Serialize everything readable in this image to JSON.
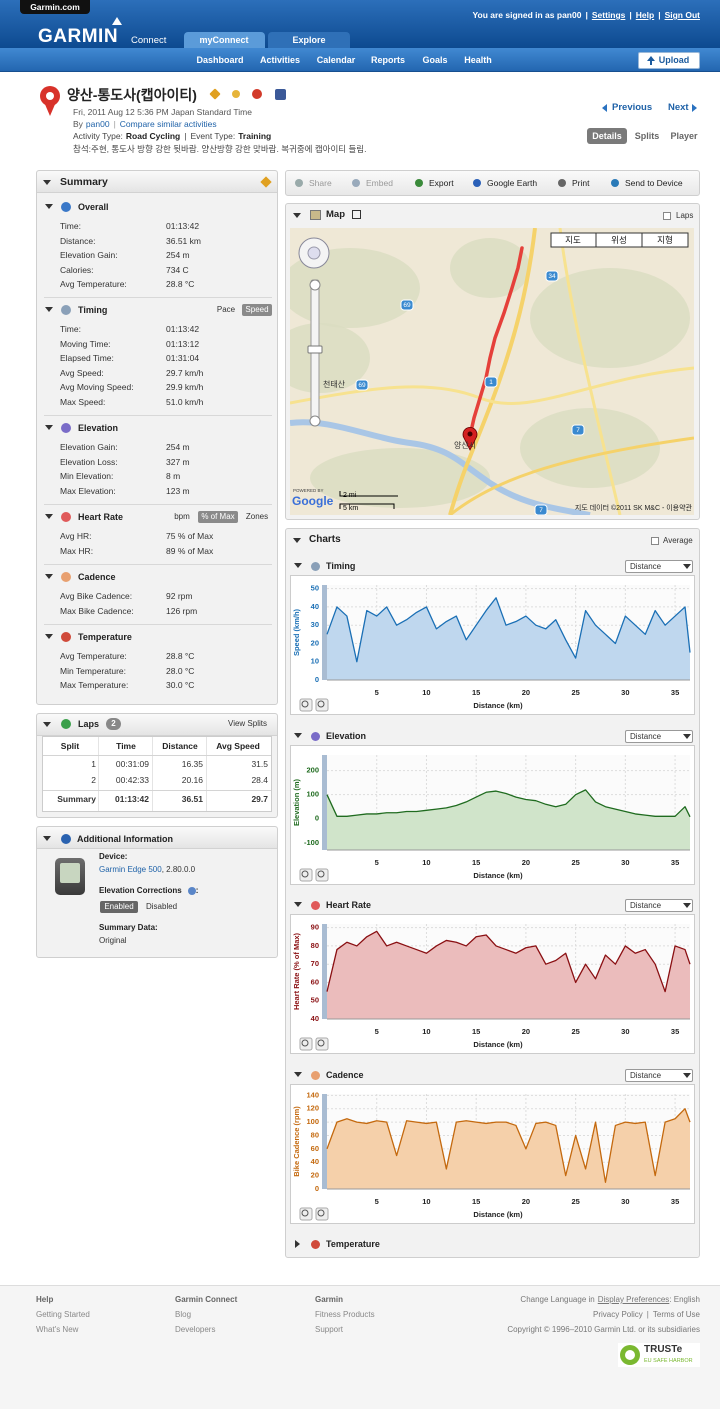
{
  "header": {
    "site": "Garmin.com",
    "signed_in": "You are signed in as pan00",
    "links": [
      "Settings",
      "Help",
      "Sign Out"
    ],
    "separator": "|",
    "logo": "GARMIN",
    "logo_sub": "Connect",
    "tabs": [
      "myConnect",
      "Explore"
    ],
    "nav": [
      "Dashboard",
      "Activities",
      "Calendar",
      "Reports",
      "Goals",
      "Health"
    ],
    "upload": "Upload"
  },
  "activity": {
    "title": "양산-통도사(캡아이티)",
    "date": "Fri, 2011 Aug 12 5:36 PM Japan Standard Time",
    "by": "By",
    "user": "pan00",
    "compare": "Compare similar activities",
    "activity_type_label": "Activity Type:",
    "activity_type": "Road Cycling",
    "event_type_label": "Event Type:",
    "event_type": "Training",
    "description": "참석:주현, 통도사 방향 강한 뒷바람. 양산방향 강한 맞바람. 복귀중에 캡아이티 들림.",
    "previous": "Previous",
    "next": "Next",
    "views": [
      "Details",
      "Splits",
      "Player"
    ],
    "selected_view": 0
  },
  "summary": {
    "title": "Summary",
    "sections": [
      {
        "title": "Overall",
        "rows": [
          [
            "Time:",
            "01:13:42"
          ],
          [
            "Distance:",
            "36.51 km"
          ],
          [
            "Elevation Gain:",
            "254 m"
          ],
          [
            "Calories:",
            "734 C"
          ],
          [
            "Avg Temperature:",
            "28.8 °C"
          ]
        ]
      },
      {
        "title": "Timing",
        "toggles": [
          "Pace",
          "Speed"
        ],
        "selected": 1,
        "rows": [
          [
            "Time:",
            "01:13:42"
          ],
          [
            "Moving Time:",
            "01:13:12"
          ],
          [
            "Elapsed Time:",
            "01:31:04"
          ],
          [
            "Avg Speed:",
            "29.7 km/h"
          ],
          [
            "Avg Moving Speed:",
            "29.9 km/h"
          ],
          [
            "Max Speed:",
            "51.0 km/h"
          ]
        ]
      },
      {
        "title": "Elevation",
        "rows": [
          [
            "Elevation Gain:",
            "254 m"
          ],
          [
            "Elevation Loss:",
            "327 m"
          ],
          [
            "Min Elevation:",
            "8 m"
          ],
          [
            "Max Elevation:",
            "123 m"
          ]
        ]
      },
      {
        "title": "Heart Rate",
        "toggles": [
          "bpm",
          "% of Max",
          "Zones"
        ],
        "selected": 1,
        "rows": [
          [
            "Avg HR:",
            "75 % of Max"
          ],
          [
            "Max HR:",
            "89 % of Max"
          ]
        ]
      },
      {
        "title": "Cadence",
        "rows": [
          [
            "Avg Bike Cadence:",
            "92 rpm"
          ],
          [
            "Max Bike Cadence:",
            "126 rpm"
          ]
        ]
      },
      {
        "title": "Temperature",
        "rows": [
          [
            "Avg Temperature:",
            "28.8 °C"
          ],
          [
            "Min Temperature:",
            "28.0 °C"
          ],
          [
            "Max Temperature:",
            "30.0 °C"
          ]
        ]
      }
    ]
  },
  "laps": {
    "title": "Laps",
    "count": "2",
    "view_splits": "View Splits",
    "columns": [
      "Split",
      "Time",
      "Distance",
      "Avg Speed"
    ],
    "rows": [
      [
        "1",
        "00:31:09",
        "16.35",
        "31.5"
      ],
      [
        "2",
        "00:42:33",
        "20.16",
        "28.4"
      ],
      [
        "Summary",
        "01:13:42",
        "36.51",
        "29.7"
      ]
    ]
  },
  "additional": {
    "title": "Additional Information",
    "device_label": "Device:",
    "device": "Garmin Edge 500",
    "device_version": ", 2.80.0.0",
    "elevation_label": "Elevation Corrections",
    "elevation_suffix": ":",
    "options": [
      "Enabled",
      "Disabled"
    ],
    "selected_option": 0,
    "summary_label": "Summary Data:",
    "summary_value": "Original"
  },
  "toolbar": {
    "items": [
      "Share",
      "Embed",
      "Export",
      "Google Earth",
      "Print",
      "Send to Device"
    ],
    "disabled": [
      true,
      true,
      false,
      false,
      false,
      false
    ]
  },
  "map": {
    "title": "Map",
    "laps": "Laps",
    "types": [
      "지도",
      "위성",
      "지형"
    ],
    "places": [
      "천태산",
      "양산시"
    ],
    "roads": [
      "69",
      "34",
      "69",
      "1",
      "7",
      "7"
    ],
    "scale": [
      "2 mi",
      "5 km"
    ],
    "powered": "POWERED BY",
    "google": "Google",
    "credit": "지도 데이터 ©2011 SK M&C - 이용약관"
  },
  "charts_panel": {
    "title": "Charts",
    "average": "Average",
    "selector": "Distance",
    "collapsed": "Temperature"
  },
  "chart_data": [
    {
      "type": "line",
      "title": "Timing",
      "ylabel": "Speed (km/h)",
      "xlabel": "Distance (km)",
      "color": "#1a6fb5",
      "fill": "#bfd7ee",
      "xlim": [
        0,
        36.5
      ],
      "xticks": [
        5,
        10,
        15,
        20,
        25,
        30,
        35
      ],
      "ylim": [
        0,
        52
      ],
      "yticks": [
        0,
        10,
        20,
        30,
        40,
        50
      ],
      "grid": true,
      "x": [
        0,
        1,
        2,
        3,
        4,
        5,
        6,
        7,
        8,
        9,
        10,
        11,
        12,
        13,
        14,
        15,
        16,
        17,
        18,
        19,
        20,
        21,
        22,
        23,
        24,
        25,
        26,
        27,
        28,
        29,
        30,
        31,
        32,
        33,
        34,
        35,
        36,
        36.5
      ],
      "values": [
        25,
        40,
        35,
        10,
        38,
        35,
        40,
        30,
        33,
        37,
        40,
        28,
        32,
        35,
        22,
        30,
        38,
        45,
        30,
        32,
        35,
        30,
        28,
        33,
        22,
        12,
        38,
        30,
        25,
        20,
        35,
        30,
        25,
        38,
        30,
        35,
        40,
        15
      ]
    },
    {
      "type": "line",
      "title": "Elevation",
      "ylabel": "Elevation (m)",
      "xlabel": "Distance (km)",
      "color": "#1f6b1f",
      "fill": "#d0e4ca",
      "xlim": [
        0,
        36.5
      ],
      "xticks": [
        5,
        10,
        15,
        20,
        25,
        30,
        35
      ],
      "ylim": [
        -130,
        265
      ],
      "yticks": [
        -100,
        0,
        100,
        200
      ],
      "grid": true,
      "x": [
        0,
        1,
        2,
        3,
        4,
        5,
        6,
        7,
        8,
        9,
        10,
        11,
        12,
        13,
        14,
        15,
        16,
        17,
        18,
        19,
        20,
        21,
        22,
        23,
        24,
        25,
        26,
        27,
        28,
        29,
        30,
        31,
        32,
        33,
        34,
        35,
        36,
        36.5
      ],
      "values": [
        100,
        10,
        10,
        15,
        20,
        20,
        25,
        25,
        30,
        30,
        35,
        40,
        45,
        55,
        70,
        90,
        110,
        115,
        105,
        90,
        80,
        75,
        60,
        50,
        60,
        100,
        120,
        70,
        50,
        40,
        30,
        20,
        15,
        10,
        10,
        10,
        50,
        8
      ]
    },
    {
      "type": "line",
      "title": "Heart Rate",
      "ylabel": "Heart Rate (% of Max)",
      "xlabel": "Distance (km)",
      "color": "#8a0f12",
      "fill": "#ebbcbc",
      "xlim": [
        0,
        36.5
      ],
      "xticks": [
        5,
        10,
        15,
        20,
        25,
        30,
        35
      ],
      "ylim": [
        40,
        92
      ],
      "yticks": [
        40,
        50,
        60,
        70,
        80,
        90
      ],
      "grid": true,
      "x": [
        0,
        1,
        2,
        3,
        4,
        5,
        6,
        7,
        8,
        9,
        10,
        11,
        12,
        13,
        14,
        15,
        16,
        17,
        18,
        19,
        20,
        21,
        22,
        23,
        24,
        25,
        26,
        27,
        28,
        29,
        30,
        31,
        32,
        33,
        34,
        35,
        36,
        36.5
      ],
      "values": [
        55,
        78,
        82,
        80,
        85,
        88,
        80,
        82,
        80,
        78,
        76,
        80,
        83,
        82,
        80,
        85,
        86,
        80,
        78,
        76,
        79,
        80,
        70,
        72,
        76,
        60,
        70,
        62,
        75,
        70,
        80,
        76,
        78,
        70,
        55,
        80,
        78,
        70
      ]
    },
    {
      "type": "line",
      "title": "Cadence",
      "ylabel": "Bike Cadence (rpm)",
      "xlabel": "Distance (km)",
      "color": "#c4690e",
      "fill": "#f5d0aa",
      "xlim": [
        0,
        36.5
      ],
      "xticks": [
        5,
        10,
        15,
        20,
        25,
        30,
        35
      ],
      "ylim": [
        0,
        142
      ],
      "yticks": [
        0,
        20,
        40,
        60,
        80,
        100,
        120,
        140
      ],
      "grid": true,
      "x": [
        0,
        1,
        2,
        3,
        4,
        5,
        6,
        7,
        8,
        9,
        10,
        11,
        12,
        13,
        14,
        15,
        16,
        17,
        18,
        19,
        20,
        21,
        22,
        23,
        24,
        25,
        26,
        27,
        28,
        29,
        30,
        31,
        32,
        33,
        34,
        35,
        36,
        36.5
      ],
      "values": [
        60,
        100,
        105,
        100,
        98,
        102,
        100,
        50,
        102,
        100,
        98,
        100,
        30,
        100,
        102,
        100,
        98,
        100,
        100,
        95,
        60,
        98,
        100,
        95,
        20,
        80,
        30,
        100,
        10,
        95,
        100,
        98,
        100,
        20,
        100,
        105,
        120,
        100
      ]
    }
  ],
  "footer": {
    "columns": [
      {
        "title": "Help",
        "links": [
          "Getting Started",
          "What's New"
        ]
      },
      {
        "title": "Garmin Connect",
        "links": [
          "Blog",
          "Developers"
        ]
      },
      {
        "title": "Garmin",
        "links": [
          "Fitness Products",
          "Support"
        ]
      }
    ],
    "language_prefix": "Change Language in",
    "display_pref": "Display Preferences",
    "language": ": English",
    "privacy": "Privacy Policy",
    "terms": "Terms of Use",
    "copyright": "Copyright © 1996–2010 Garmin Ltd. or its subsidiaries",
    "truste": "TRUSTe",
    "truste_sub": "EU SAFE HARBOR"
  }
}
